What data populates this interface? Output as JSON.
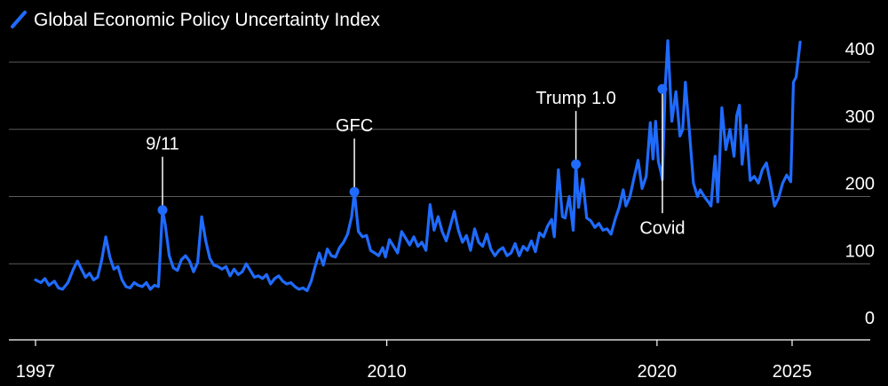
{
  "legend": {
    "label": "Global Economic Policy Uncertainty Index",
    "color": "#1f6bff"
  },
  "colors": {
    "background": "#000000",
    "grid": "#5a5a5a",
    "axis": "#ffffff",
    "text": "#ffffff",
    "series": "#1f6bff"
  },
  "chart_data": {
    "type": "line",
    "title": "",
    "xlabel": "",
    "ylabel": "",
    "xlim": [
      1997.0,
      2026.2
    ],
    "ylim": [
      0,
      400
    ],
    "grid": true,
    "y_axis_side": "right",
    "legend_position": "top-left",
    "x_ticks": [
      {
        "value": 1997,
        "label": "1997"
      },
      {
        "value": 2010,
        "label": "2010"
      },
      {
        "value": 2020,
        "label": "2020"
      },
      {
        "value": 2025,
        "label": "2025"
      }
    ],
    "y_ticks": [
      {
        "value": 0,
        "label": "0"
      },
      {
        "value": 100,
        "label": "100"
      },
      {
        "value": 200,
        "label": "200"
      },
      {
        "value": 300,
        "label": "300"
      },
      {
        "value": 400,
        "label": "400"
      }
    ],
    "annotations": [
      {
        "label": "9/11",
        "x": 2001.7,
        "y": 180,
        "label_side": "above"
      },
      {
        "label": "GFC",
        "x": 2008.8,
        "y": 207,
        "label_side": "above"
      },
      {
        "label": "Trump 1.0",
        "x": 2017.0,
        "y": 248,
        "label_side": "above"
      },
      {
        "label": "Covid",
        "x": 2020.2,
        "y": 360,
        "label_side": "below"
      }
    ],
    "series": [
      {
        "name": "Global Economic Policy Uncertainty Index",
        "color": "#1f6bff",
        "points": [
          [
            1997.0,
            76
          ],
          [
            1997.2,
            72
          ],
          [
            1997.35,
            78
          ],
          [
            1997.5,
            68
          ],
          [
            1997.7,
            74
          ],
          [
            1997.85,
            64
          ],
          [
            1998.0,
            62
          ],
          [
            1998.2,
            72
          ],
          [
            1998.4,
            92
          ],
          [
            1998.55,
            104
          ],
          [
            1998.7,
            92
          ],
          [
            1998.85,
            80
          ],
          [
            1999.0,
            86
          ],
          [
            1999.15,
            76
          ],
          [
            1999.3,
            80
          ],
          [
            1999.45,
            106
          ],
          [
            1999.6,
            140
          ],
          [
            1999.75,
            110
          ],
          [
            1999.9,
            92
          ],
          [
            2000.05,
            96
          ],
          [
            2000.2,
            76
          ],
          [
            2000.35,
            66
          ],
          [
            2000.5,
            64
          ],
          [
            2000.65,
            72
          ],
          [
            2000.8,
            68
          ],
          [
            2000.95,
            66
          ],
          [
            2001.1,
            72
          ],
          [
            2001.25,
            62
          ],
          [
            2001.4,
            68
          ],
          [
            2001.55,
            66
          ],
          [
            2001.7,
            180
          ],
          [
            2001.8,
            158
          ],
          [
            2001.95,
            112
          ],
          [
            2002.1,
            94
          ],
          [
            2002.25,
            90
          ],
          [
            2002.4,
            106
          ],
          [
            2002.55,
            112
          ],
          [
            2002.7,
            104
          ],
          [
            2002.85,
            88
          ],
          [
            2003.0,
            102
          ],
          [
            2003.15,
            170
          ],
          [
            2003.3,
            134
          ],
          [
            2003.45,
            108
          ],
          [
            2003.6,
            98
          ],
          [
            2003.75,
            96
          ],
          [
            2003.9,
            92
          ],
          [
            2004.05,
            96
          ],
          [
            2004.2,
            82
          ],
          [
            2004.35,
            92
          ],
          [
            2004.5,
            84
          ],
          [
            2004.65,
            88
          ],
          [
            2004.8,
            100
          ],
          [
            2004.95,
            90
          ],
          [
            2005.1,
            80
          ],
          [
            2005.25,
            82
          ],
          [
            2005.4,
            78
          ],
          [
            2005.55,
            84
          ],
          [
            2005.7,
            70
          ],
          [
            2005.85,
            78
          ],
          [
            2006.0,
            82
          ],
          [
            2006.15,
            74
          ],
          [
            2006.3,
            70
          ],
          [
            2006.45,
            72
          ],
          [
            2006.6,
            66
          ],
          [
            2006.75,
            62
          ],
          [
            2006.9,
            64
          ],
          [
            2007.05,
            60
          ],
          [
            2007.2,
            74
          ],
          [
            2007.35,
            96
          ],
          [
            2007.5,
            116
          ],
          [
            2007.65,
            98
          ],
          [
            2007.8,
            122
          ],
          [
            2007.95,
            112
          ],
          [
            2008.1,
            110
          ],
          [
            2008.25,
            124
          ],
          [
            2008.4,
            132
          ],
          [
            2008.55,
            144
          ],
          [
            2008.7,
            170
          ],
          [
            2008.8,
            207
          ],
          [
            2008.95,
            148
          ],
          [
            2009.1,
            140
          ],
          [
            2009.25,
            142
          ],
          [
            2009.4,
            120
          ],
          [
            2009.55,
            116
          ],
          [
            2009.7,
            112
          ],
          [
            2009.85,
            124
          ],
          [
            2009.95,
            110
          ],
          [
            2010.1,
            136
          ],
          [
            2010.25,
            126
          ],
          [
            2010.4,
            116
          ],
          [
            2010.55,
            148
          ],
          [
            2010.7,
            138
          ],
          [
            2010.85,
            128
          ],
          [
            2011.0,
            140
          ],
          [
            2011.15,
            126
          ],
          [
            2011.3,
            132
          ],
          [
            2011.45,
            120
          ],
          [
            2011.6,
            188
          ],
          [
            2011.75,
            150
          ],
          [
            2011.9,
            170
          ],
          [
            2012.05,
            148
          ],
          [
            2012.2,
            134
          ],
          [
            2012.35,
            156
          ],
          [
            2012.5,
            178
          ],
          [
            2012.65,
            150
          ],
          [
            2012.8,
            132
          ],
          [
            2012.95,
            142
          ],
          [
            2013.1,
            120
          ],
          [
            2013.25,
            152
          ],
          [
            2013.4,
            132
          ],
          [
            2013.55,
            126
          ],
          [
            2013.7,
            144
          ],
          [
            2013.85,
            122
          ],
          [
            2014.0,
            112
          ],
          [
            2014.15,
            120
          ],
          [
            2014.3,
            124
          ],
          [
            2014.45,
            112
          ],
          [
            2014.6,
            116
          ],
          [
            2014.75,
            130
          ],
          [
            2014.9,
            112
          ],
          [
            2015.05,
            126
          ],
          [
            2015.2,
            120
          ],
          [
            2015.35,
            134
          ],
          [
            2015.5,
            118
          ],
          [
            2015.65,
            146
          ],
          [
            2015.8,
            140
          ],
          [
            2015.95,
            156
          ],
          [
            2016.1,
            166
          ],
          [
            2016.2,
            140
          ],
          [
            2016.35,
            240
          ],
          [
            2016.5,
            170
          ],
          [
            2016.6,
            168
          ],
          [
            2016.75,
            200
          ],
          [
            2016.9,
            150
          ],
          [
            2017.0,
            248
          ],
          [
            2017.1,
            184
          ],
          [
            2017.25,
            226
          ],
          [
            2017.4,
            168
          ],
          [
            2017.55,
            164
          ],
          [
            2017.7,
            154
          ],
          [
            2017.85,
            160
          ],
          [
            2018.0,
            150
          ],
          [
            2018.15,
            152
          ],
          [
            2018.3,
            144
          ],
          [
            2018.45,
            166
          ],
          [
            2018.6,
            184
          ],
          [
            2018.75,
            210
          ],
          [
            2018.85,
            186
          ],
          [
            2019.0,
            200
          ],
          [
            2019.15,
            228
          ],
          [
            2019.3,
            254
          ],
          [
            2019.45,
            212
          ],
          [
            2019.6,
            230
          ],
          [
            2019.75,
            310
          ],
          [
            2019.85,
            256
          ],
          [
            2019.95,
            312
          ],
          [
            2020.05,
            252
          ],
          [
            2020.15,
            236
          ],
          [
            2020.2,
            225
          ],
          [
            2020.3,
            360
          ],
          [
            2020.4,
            432
          ],
          [
            2020.55,
            312
          ],
          [
            2020.7,
            356
          ],
          [
            2020.85,
            290
          ],
          [
            2020.95,
            300
          ],
          [
            2021.05,
            370
          ],
          [
            2021.2,
            296
          ],
          [
            2021.35,
            220
          ],
          [
            2021.5,
            200
          ],
          [
            2021.6,
            210
          ],
          [
            2021.75,
            200
          ],
          [
            2021.9,
            192
          ],
          [
            2022.0,
            186
          ],
          [
            2022.15,
            260
          ],
          [
            2022.25,
            192
          ],
          [
            2022.4,
            332
          ],
          [
            2022.55,
            270
          ],
          [
            2022.7,
            300
          ],
          [
            2022.85,
            260
          ],
          [
            2022.95,
            320
          ],
          [
            2023.05,
            336
          ],
          [
            2023.15,
            248
          ],
          [
            2023.3,
            306
          ],
          [
            2023.45,
            224
          ],
          [
            2023.6,
            230
          ],
          [
            2023.75,
            220
          ],
          [
            2023.9,
            240
          ],
          [
            2024.05,
            250
          ],
          [
            2024.2,
            220
          ],
          [
            2024.35,
            186
          ],
          [
            2024.5,
            198
          ],
          [
            2024.65,
            220
          ],
          [
            2024.8,
            232
          ],
          [
            2024.95,
            222
          ],
          [
            2025.05,
            370
          ],
          [
            2025.15,
            378
          ],
          [
            2025.3,
            430
          ]
        ]
      }
    ]
  }
}
